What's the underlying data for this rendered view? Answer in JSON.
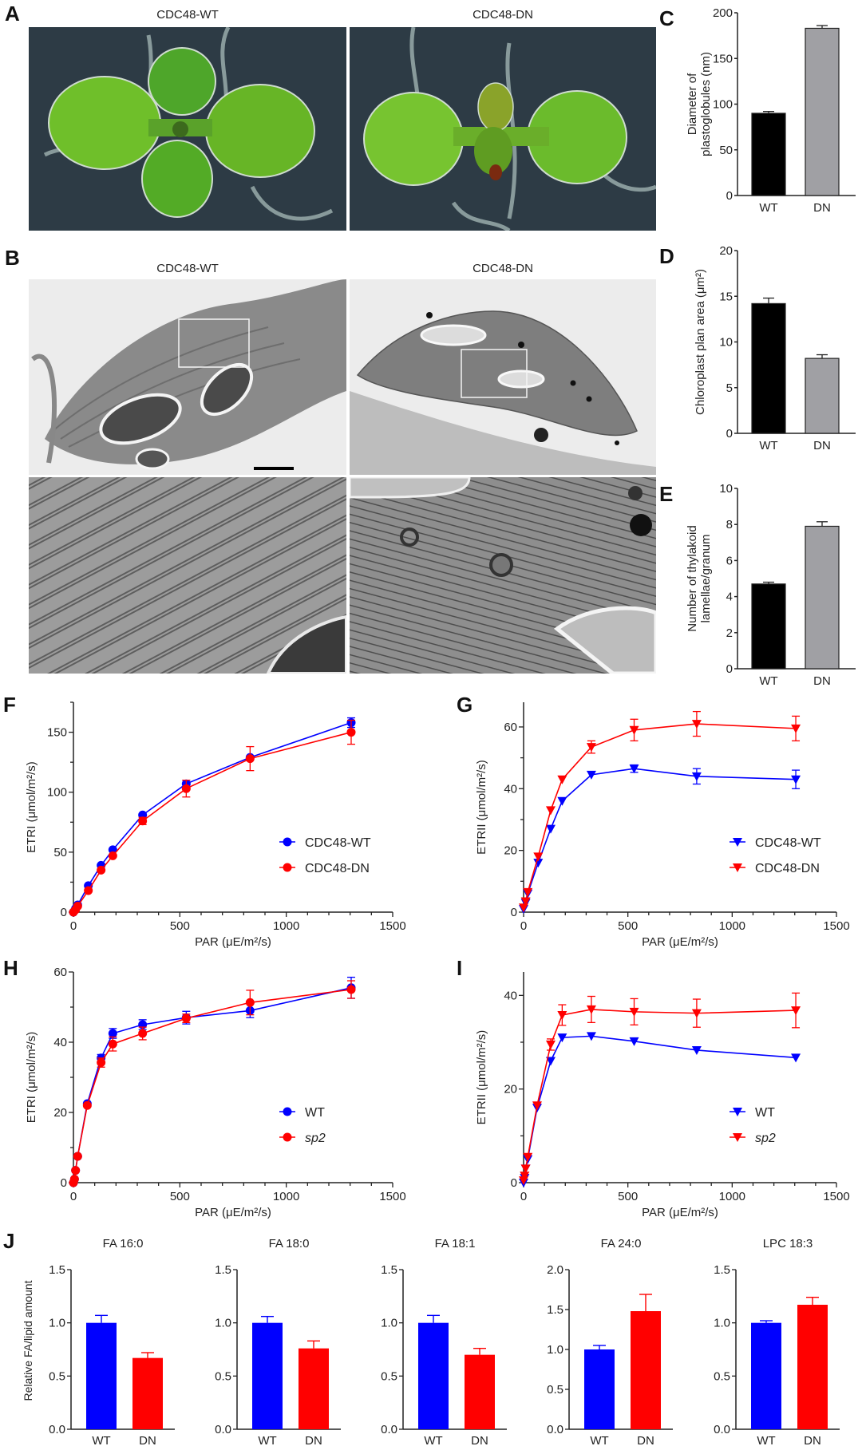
{
  "panels": {
    "A": {
      "letter": "A",
      "titles": [
        "CDC48-WT",
        "CDC48-DN"
      ]
    },
    "B": {
      "letter": "B",
      "titles": [
        "CDC48-WT",
        "CDC48-DN"
      ]
    }
  },
  "colors": {
    "blue": "#0000ff",
    "red": "#ff0000",
    "black": "#000000",
    "gray": "#a0a0a4",
    "plate": "#2c3a44",
    "leaf": "#6fbf2a"
  },
  "chart_data": [
    {
      "id": "C",
      "letter": "C",
      "type": "bar",
      "categories": [
        "WT",
        "DN"
      ],
      "values": [
        90,
        183
      ],
      "errors": [
        2,
        3
      ],
      "bar_colors": [
        "#000000",
        "#a0a0a4"
      ],
      "ylabel": [
        "Diameter of",
        "plastoglobules (nm)"
      ],
      "ylim": [
        0,
        200
      ],
      "yticks": [
        "0",
        "50",
        "100",
        "150",
        "200"
      ]
    },
    {
      "id": "D",
      "letter": "D",
      "type": "bar",
      "categories": [
        "WT",
        "DN"
      ],
      "values": [
        14.2,
        8.2
      ],
      "errors": [
        0.6,
        0.4
      ],
      "bar_colors": [
        "#000000",
        "#a0a0a4"
      ],
      "ylabel": [
        "Chloroplast plan area (μm²)"
      ],
      "ylim": [
        0,
        20
      ],
      "yticks": [
        "0",
        "5",
        "10",
        "15",
        "20"
      ]
    },
    {
      "id": "E",
      "letter": "E",
      "type": "bar",
      "categories": [
        "WT",
        "DN"
      ],
      "values": [
        4.7,
        7.9
      ],
      "errors": [
        0.1,
        0.25
      ],
      "bar_colors": [
        "#000000",
        "#a0a0a4"
      ],
      "ylabel": [
        "Number of thylakoid",
        "lamellae/granum"
      ],
      "ylim": [
        0,
        10
      ],
      "yticks": [
        "0",
        "2",
        "4",
        "6",
        "8",
        "10"
      ]
    },
    {
      "id": "F",
      "letter": "F",
      "type": "line",
      "xlabel": "PAR (μE/m²/s)",
      "ylabel": "ETRI (μmol/m²/s)",
      "xlim": [
        0,
        1500
      ],
      "ylim": [
        0,
        175
      ],
      "xticks": [
        "0",
        "500",
        "1000",
        "1500"
      ],
      "yticks": [
        "0",
        "50",
        "100",
        "150"
      ],
      "marker": "circle",
      "legend_position": "center-right",
      "x": [
        0,
        10,
        20,
        70,
        130,
        185,
        325,
        530,
        830,
        1305
      ],
      "series": [
        {
          "name": "CDC48-WT",
          "color": "#0000ff",
          "values": [
            0,
            3,
            6,
            22,
            39,
            52,
            81,
            107,
            129,
            158
          ],
          "errors": [
            0,
            0,
            0,
            0,
            0,
            0,
            0,
            3,
            0,
            4
          ]
        },
        {
          "name": "CDC48-DN",
          "color": "#ff0000",
          "values": [
            0,
            2,
            5,
            18,
            35,
            47,
            76,
            103,
            128,
            150
          ],
          "errors": [
            0,
            0,
            0,
            0,
            0,
            0,
            3,
            7,
            10,
            10
          ]
        }
      ]
    },
    {
      "id": "G",
      "letter": "G",
      "type": "line",
      "xlabel": "PAR (μE/m²/s)",
      "ylabel": "ETRII (μmol/m²/s)",
      "xlim": [
        0,
        1500
      ],
      "ylim": [
        0,
        68
      ],
      "xticks": [
        "0",
        "500",
        "1000",
        "1500"
      ],
      "yticks": [
        "0",
        "20",
        "40",
        "60"
      ],
      "marker": "triangle-down",
      "legend_position": "center-right",
      "x": [
        0,
        10,
        20,
        70,
        130,
        185,
        325,
        530,
        830,
        1305
      ],
      "series": [
        {
          "name": "CDC48-WT",
          "color": "#0000ff",
          "values": [
            1,
            3,
            6,
            16,
            27,
            36,
            44.5,
            46.5,
            44,
            43
          ],
          "errors": [
            0,
            0,
            0,
            0,
            0,
            0,
            0,
            1.2,
            2.5,
            3
          ]
        },
        {
          "name": "CDC48-DN",
          "color": "#ff0000",
          "values": [
            1.5,
            3.5,
            6.5,
            18,
            33,
            43,
            53.5,
            59,
            61,
            59.5
          ],
          "errors": [
            0,
            0,
            0,
            0,
            0,
            0,
            2,
            3.5,
            4,
            4
          ]
        }
      ]
    },
    {
      "id": "H",
      "letter": "H",
      "type": "line",
      "xlabel": "PAR (μE/m²/s)",
      "ylabel": "ETRI (μmol/m²/s)",
      "xlim": [
        0,
        1500
      ],
      "ylim": [
        0,
        60
      ],
      "xticks": [
        "0",
        "500",
        "1000",
        "1500"
      ],
      "yticks": [
        "0",
        "20",
        "40",
        "60"
      ],
      "marker": "circle",
      "legend_position": "center-right",
      "x": [
        0,
        5,
        10,
        20,
        65,
        130,
        185,
        325,
        530,
        830,
        1305
      ],
      "series": [
        {
          "name": "WT",
          "color": "#0000ff",
          "italic": false,
          "values": [
            0,
            1,
            3.5,
            7.5,
            22.5,
            35.5,
            42.5,
            45,
            47,
            49,
            55.5
          ],
          "errors": [
            0,
            0,
            0,
            0,
            0,
            1,
            1.4,
            1.4,
            1.8,
            2,
            3
          ]
        },
        {
          "name": "sp2",
          "color": "#ff0000",
          "italic": true,
          "values": [
            0,
            1,
            3.5,
            7.5,
            22,
            34.2,
            39.5,
            42.5,
            46.8,
            51.3,
            55
          ],
          "errors": [
            0,
            0,
            0,
            0,
            0,
            1.3,
            2,
            1.8,
            1.2,
            3.5,
            2.5
          ]
        }
      ]
    },
    {
      "id": "I",
      "letter": "I",
      "type": "line",
      "xlabel": "PAR (μE/m²/s)",
      "ylabel": "ETRII (μmol/m²/s)",
      "xlim": [
        0,
        1500
      ],
      "ylim": [
        0,
        45
      ],
      "xticks": [
        "0",
        "500",
        "1000",
        "1500"
      ],
      "yticks": [
        "0",
        "20",
        "40"
      ],
      "marker": "triangle-down",
      "legend_position": "center-right",
      "x": [
        0,
        5,
        10,
        20,
        65,
        130,
        185,
        325,
        530,
        830,
        1305
      ],
      "series": [
        {
          "name": "WT",
          "color": "#0000ff",
          "italic": false,
          "values": [
            0,
            1,
            3,
            5,
            16,
            26,
            31,
            31.3,
            30.2,
            28.3,
            26.7
          ],
          "errors": [
            0,
            0,
            0,
            0,
            0,
            0,
            0,
            0,
            0,
            0,
            0
          ]
        },
        {
          "name": "sp2",
          "color": "#ff0000",
          "italic": true,
          "values": [
            0.5,
            1.5,
            3,
            5.5,
            16.5,
            29.5,
            35.8,
            37,
            36.5,
            36.2,
            36.8
          ],
          "errors": [
            0,
            0,
            0,
            0,
            0,
            1.2,
            2.2,
            2.8,
            2.8,
            3,
            3.7
          ]
        }
      ]
    },
    {
      "id": "J",
      "letter": "J",
      "type": "bar",
      "ylabel": "Relative FA/lipid amount",
      "subplots": [
        {
          "title": "FA 16:0",
          "categories": [
            "WT",
            "DN"
          ],
          "values": [
            1.0,
            0.67
          ],
          "errors": [
            0.07,
            0.05
          ],
          "ylim": [
            0,
            1.5
          ],
          "yticks": [
            "0.0",
            "0.5",
            "1.0",
            "1.5"
          ]
        },
        {
          "title": "FA 18:0",
          "categories": [
            "WT",
            "DN"
          ],
          "values": [
            1.0,
            0.76
          ],
          "errors": [
            0.06,
            0.07
          ],
          "ylim": [
            0,
            1.5
          ],
          "yticks": [
            "0.0",
            "0.5",
            "1.0",
            "1.5"
          ]
        },
        {
          "title": "FA 18:1",
          "categories": [
            "WT",
            "DN"
          ],
          "values": [
            1.0,
            0.7
          ],
          "errors": [
            0.07,
            0.06
          ],
          "ylim": [
            0,
            1.5
          ],
          "yticks": [
            "0.0",
            "0.5",
            "1.0",
            "1.5"
          ]
        },
        {
          "title": "FA 24:0",
          "categories": [
            "WT",
            "DN"
          ],
          "values": [
            1.0,
            1.48
          ],
          "errors": [
            0.05,
            0.21
          ],
          "ylim": [
            0,
            2.0
          ],
          "yticks": [
            "0.0",
            "0.5",
            "1.0",
            "1.5",
            "2.0"
          ]
        },
        {
          "title": "LPC 18:3",
          "categories": [
            "WT",
            "DN"
          ],
          "values": [
            1.0,
            1.17
          ],
          "errors": [
            0.02,
            0.07
          ],
          "ylim": [
            0,
            1.5
          ],
          "yticks": [
            "0.0",
            "0.5",
            "1.0",
            "1.5"
          ]
        }
      ],
      "bar_colors": [
        "#0000ff",
        "#ff0000"
      ]
    }
  ]
}
